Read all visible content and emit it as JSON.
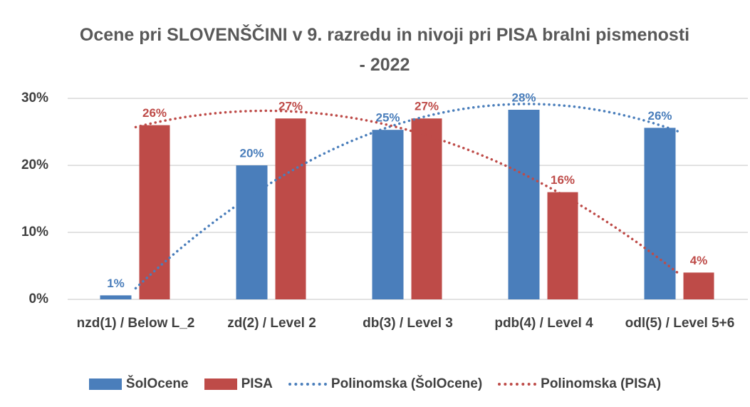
{
  "chart_data": {
    "type": "bar",
    "title": "Ocene pri SLOVENŠČINI v 9. razredu in nivoji pri PISA bralni pismenosti - 2022",
    "categories": [
      "nzd(1) / Below L_2",
      "zd(2) / Level 2",
      "db(3) / Level 3",
      "pdb(4) / Level 4",
      "odl(5) / Level 5+6"
    ],
    "series": [
      {
        "name": "ŠolOcene",
        "color": "#4a7ebb",
        "values": [
          0.6,
          20,
          25.3,
          28.3,
          25.6
        ],
        "value_labels": [
          "1%",
          "20%",
          "25%",
          "28%",
          "26%"
        ]
      },
      {
        "name": "PISA",
        "color": "#be4b48",
        "values": [
          26,
          27,
          27,
          16,
          4
        ],
        "value_labels": [
          "26%",
          "27%",
          "27%",
          "16%",
          "4%"
        ]
      }
    ],
    "trendlines": [
      {
        "name": "Polinomska (ŠolOcene)",
        "series": 0,
        "color": "#4a7ebb",
        "degree": 2
      },
      {
        "name": "Polinomska (PISA)",
        "series": 1,
        "color": "#be4b48",
        "degree": 2
      }
    ],
    "ylim": [
      0,
      30
    ],
    "yticks": [
      {
        "value": 0,
        "label": "0%"
      },
      {
        "value": 10,
        "label": "10%"
      },
      {
        "value": 20,
        "label": "20%"
      },
      {
        "value": 30,
        "label": "30%"
      }
    ],
    "grid": true,
    "legend": "bottom"
  }
}
